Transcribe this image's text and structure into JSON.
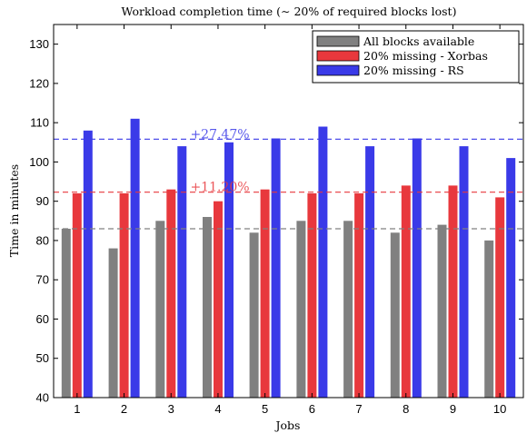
{
  "chart_data": {
    "type": "bar",
    "title": "Workload completion time (∼ 20% of required blocks lost)",
    "xlabel": "Jobs",
    "ylabel": "Time in minutes",
    "categories": [
      "1",
      "2",
      "3",
      "4",
      "5",
      "6",
      "7",
      "8",
      "9",
      "10"
    ],
    "ylim": [
      40,
      135
    ],
    "yticks": [
      40,
      50,
      60,
      70,
      80,
      90,
      100,
      110,
      120,
      130
    ],
    "grid": false,
    "legend_position": "top-right",
    "series": [
      {
        "name": "All blocks available",
        "color": "#808080",
        "values": [
          83,
          78,
          85,
          86,
          82,
          85,
          85,
          82,
          84,
          80
        ]
      },
      {
        "name": "20% missing - Xorbas",
        "color": "#e8383d",
        "values": [
          92,
          92,
          93,
          90,
          93,
          92,
          92,
          94,
          94,
          91
        ]
      },
      {
        "name": "20% missing - RS",
        "color": "#3a3ae8",
        "values": [
          108,
          111,
          104,
          105,
          106,
          109,
          104,
          106,
          104,
          101
        ]
      }
    ],
    "reference_lines": [
      {
        "series": "All blocks available",
        "value": 83,
        "color": "#808080",
        "label": ""
      },
      {
        "series": "20% missing - Xorbas",
        "value": 92.3,
        "color": "#e8383d",
        "label": "+11.20%"
      },
      {
        "series": "20% missing - RS",
        "value": 105.8,
        "color": "#3a3ae8",
        "label": "+27.47%"
      }
    ]
  }
}
